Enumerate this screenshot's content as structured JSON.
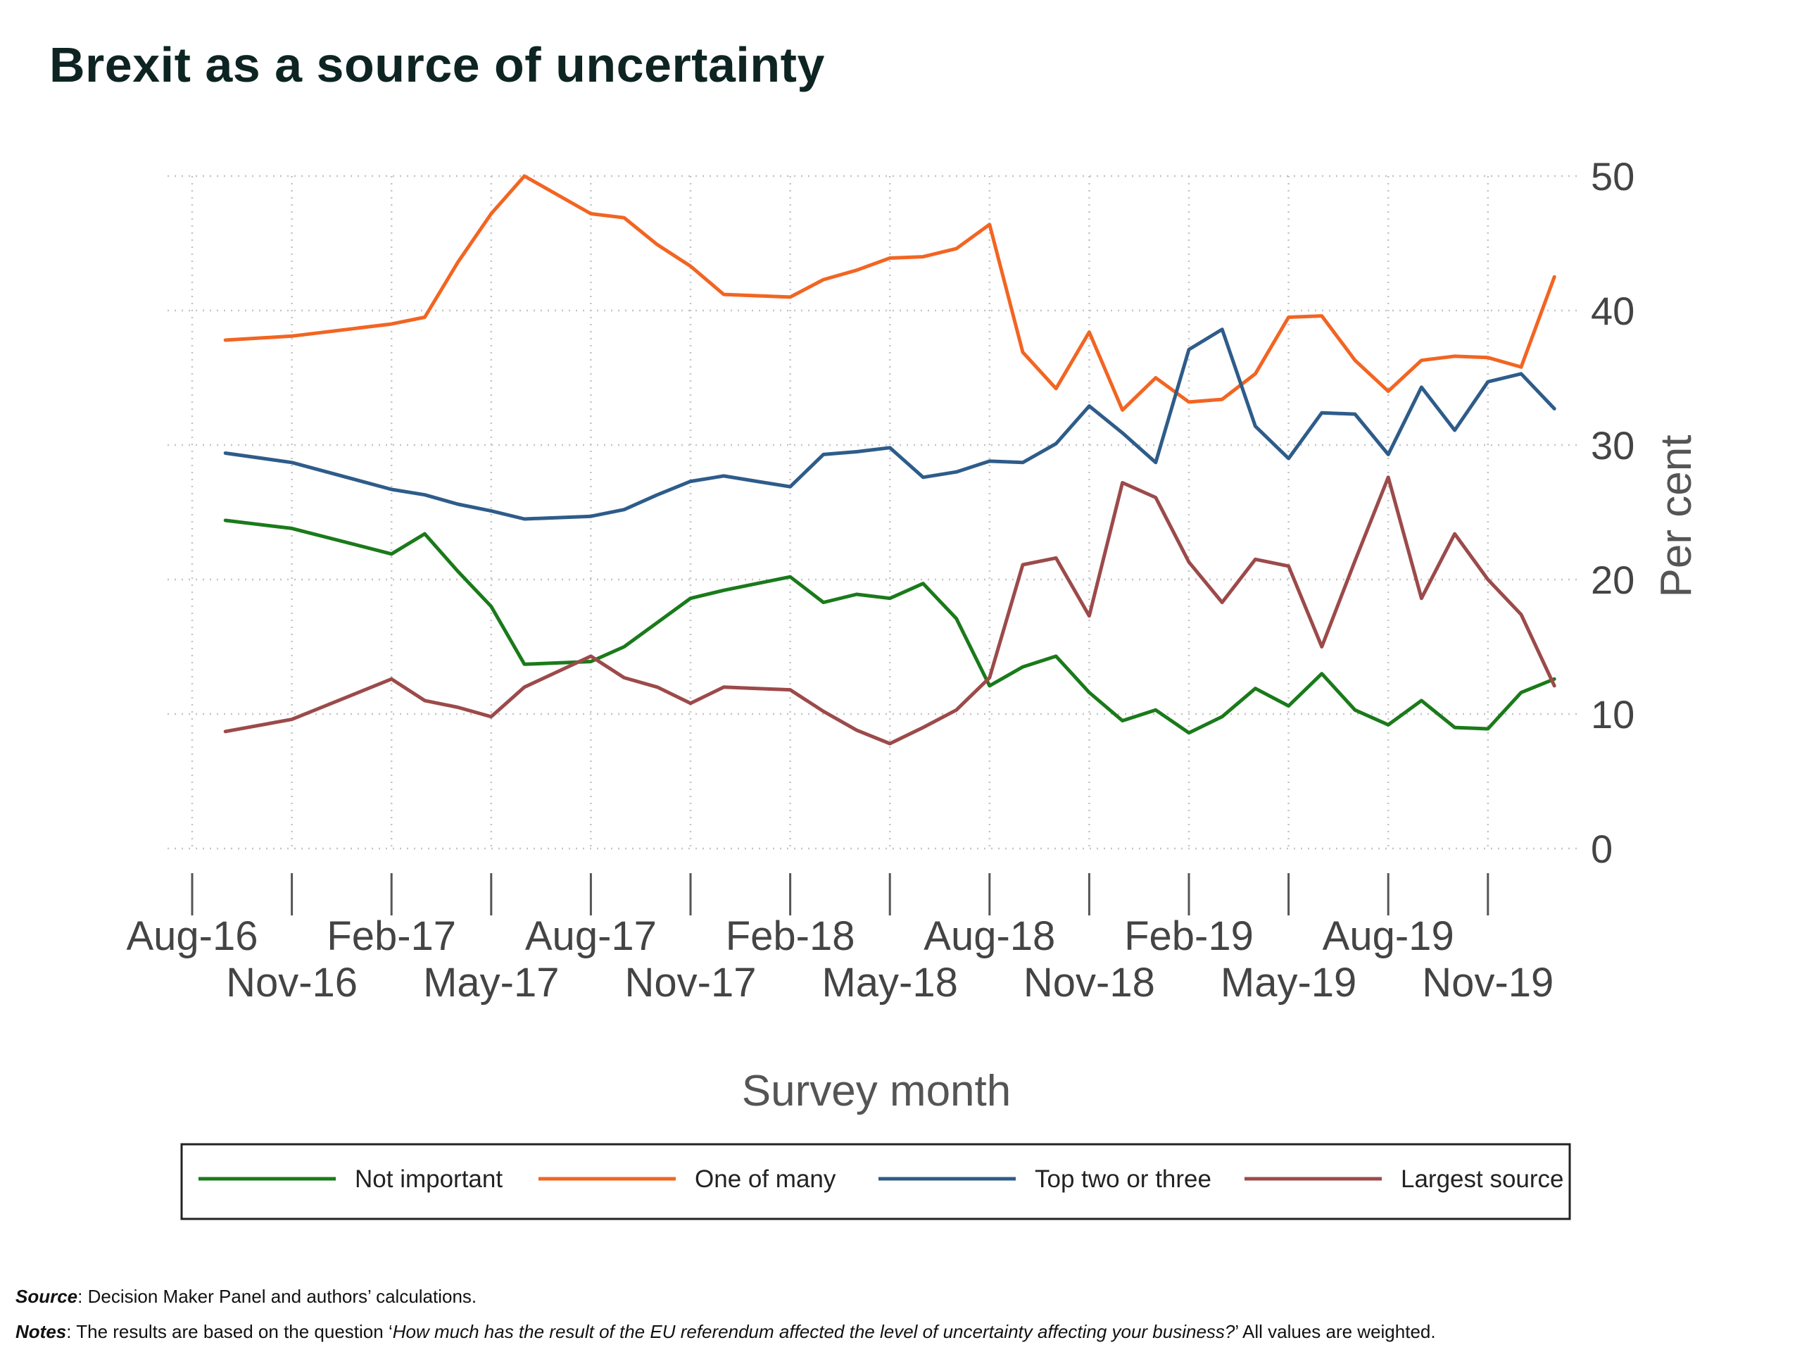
{
  "title": "Brexit as a source of uncertainty",
  "footnotes": {
    "source_label": "Source",
    "source_text": ": Decision Maker Panel and authors’ calculations.",
    "notes_label": "Notes",
    "notes_text_1": ": The results are based on the question ‘",
    "notes_question": "How much has the result of the EU referendum affected the level of uncertainty affecting your business?",
    "notes_text_2": "’ All values are weighted."
  },
  "chart_data": {
    "type": "line",
    "xlabel": "Survey month",
    "ylabel": "Per cent",
    "ylim": [
      0,
      50
    ],
    "yticks": [
      0,
      10,
      20,
      30,
      40,
      50
    ],
    "y_axis_side": "right",
    "grid": true,
    "legend_position": "bottom",
    "x_start": "Sep-16",
    "x_tick_labels": [
      "Aug-16",
      "Nov-16",
      "Feb-17",
      "May-17",
      "Aug-17",
      "Nov-17",
      "Feb-18",
      "May-18",
      "Aug-18",
      "Nov-18",
      "Feb-19",
      "May-19",
      "Aug-19",
      "Nov-19"
    ],
    "x": [
      "Sep-16",
      "Nov-16",
      "Feb-17",
      "Mar-17",
      "Apr-17",
      "May-17",
      "Jun-17",
      "Aug-17",
      "Sep-17",
      "Oct-17",
      "Nov-17",
      "Dec-17",
      "Jan-18",
      "Feb-18",
      "Mar-18",
      "Apr-18",
      "May-18",
      "Jun-18",
      "Jul-18",
      "Aug-18",
      "Sep-18",
      "Oct-18",
      "Nov-18",
      "Dec-18",
      "Jan-19",
      "Feb-19",
      "Mar-19",
      "Apr-19",
      "May-19",
      "Jun-19",
      "Jul-19",
      "Aug-19",
      "Sep-19",
      "Oct-19",
      "Nov-19",
      "Dec-19",
      "Jan-20"
    ],
    "series": [
      {
        "name": "Not important",
        "color": "#1a7a1a",
        "values": [
          24.4,
          23.8,
          21.9,
          23.4,
          20.6,
          18.0,
          13.7,
          13.9,
          15.0,
          16.8,
          18.6,
          19.2,
          19.7,
          20.2,
          18.3,
          18.9,
          18.6,
          19.7,
          17.1,
          12.1,
          13.5,
          14.3,
          11.6,
          9.5,
          10.3,
          8.6,
          9.8,
          11.9,
          10.6,
          13.0,
          10.3,
          9.2,
          11.0,
          9.0,
          8.9,
          11.6,
          12.6
        ]
      },
      {
        "name": "One of many",
        "color": "#f26522",
        "values": [
          37.8,
          38.1,
          39.0,
          39.5,
          43.6,
          47.2,
          50.0,
          47.2,
          46.9,
          44.9,
          43.3,
          41.2,
          41.1,
          41.0,
          42.3,
          43.0,
          43.9,
          44.0,
          44.6,
          46.4,
          36.9,
          34.2,
          38.4,
          32.6,
          35.0,
          33.2,
          33.4,
          35.3,
          39.5,
          39.6,
          36.3,
          34.0,
          36.3,
          36.6,
          36.5,
          35.8,
          42.5
        ]
      },
      {
        "name": "Top two or three",
        "color": "#2e5c8a",
        "values": [
          29.4,
          28.7,
          26.7,
          26.3,
          25.6,
          25.1,
          24.5,
          24.7,
          25.2,
          26.3,
          27.3,
          27.7,
          27.3,
          26.9,
          29.3,
          29.5,
          29.8,
          27.6,
          28.0,
          28.8,
          28.7,
          30.1,
          32.9,
          30.9,
          28.7,
          37.1,
          38.6,
          31.4,
          29.0,
          32.4,
          32.3,
          29.3,
          34.3,
          31.1,
          34.7,
          35.3,
          32.7
        ]
      },
      {
        "name": "Largest source",
        "color": "#9c4a4a",
        "values": [
          8.7,
          9.6,
          12.6,
          11.0,
          10.5,
          9.8,
          12.0,
          14.3,
          12.7,
          12.0,
          10.8,
          12.0,
          11.9,
          11.8,
          10.2,
          8.8,
          7.8,
          9.0,
          10.3,
          12.7,
          21.1,
          21.6,
          17.3,
          27.2,
          26.1,
          21.3,
          18.3,
          21.5,
          21.0,
          15.0,
          21.4,
          27.6,
          18.6,
          23.4,
          20.0,
          17.4,
          12.1
        ]
      }
    ]
  }
}
